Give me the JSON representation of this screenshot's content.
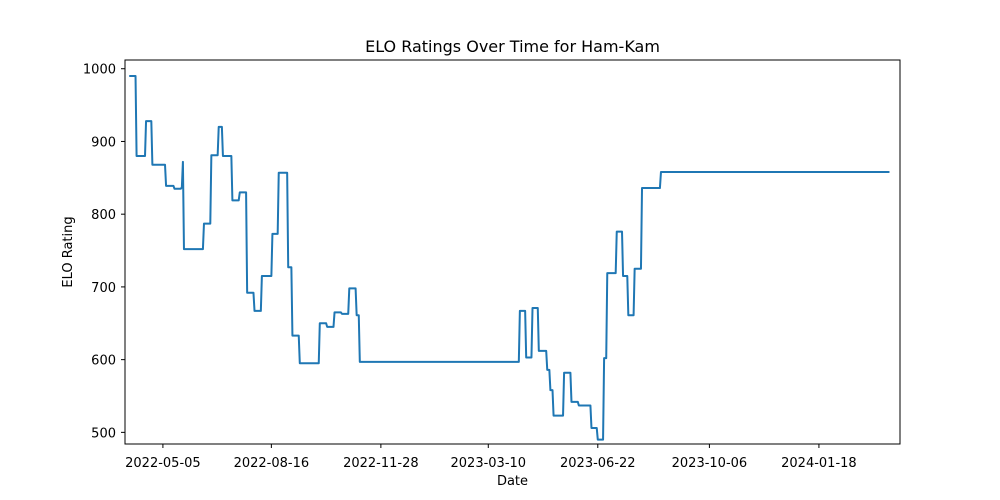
{
  "chart_data": {
    "type": "line",
    "title": "ELO Ratings Over Time for Ham-Kam",
    "xlabel": "Date",
    "ylabel": "ELO Rating",
    "x_ticks": [
      "2022-05-05",
      "2022-08-16",
      "2022-11-28",
      "2023-03-10",
      "2023-06-22",
      "2023-10-06",
      "2024-01-18"
    ],
    "y_ticks": [
      500,
      600,
      700,
      800,
      900,
      1000
    ],
    "xlim": [
      "2022-03-30",
      "2024-04-04"
    ],
    "ylim": [
      484,
      1012
    ],
    "grid": false,
    "line_color": "#1f77b4",
    "series": [
      {
        "x": [
          "2022-04-03",
          "2022-04-09",
          "2022-04-10",
          "2022-04-18",
          "2022-04-19",
          "2022-04-24",
          "2022-04-25",
          "2022-05-07",
          "2022-05-08",
          "2022-05-15",
          "2022-05-16",
          "2022-05-22",
          "2022-05-23",
          "2022-05-24",
          "2022-05-25",
          "2022-06-12",
          "2022-06-13",
          "2022-06-19",
          "2022-06-20",
          "2022-06-26",
          "2022-06-27",
          "2022-06-30",
          "2022-07-01",
          "2022-07-09",
          "2022-07-10",
          "2022-07-16",
          "2022-07-17",
          "2022-07-23",
          "2022-07-24",
          "2022-07-30",
          "2022-07-31",
          "2022-08-06",
          "2022-08-07",
          "2022-08-16",
          "2022-08-17",
          "2022-08-22",
          "2022-08-23",
          "2022-08-31",
          "2022-09-01",
          "2022-09-04",
          "2022-09-05",
          "2022-09-11",
          "2022-09-12",
          "2022-09-14",
          "2022-09-15",
          "2022-09-30",
          "2022-10-01",
          "2022-10-07",
          "2022-10-08",
          "2022-10-14",
          "2022-10-15",
          "2022-10-21",
          "2022-10-22",
          "2022-10-28",
          "2022-10-29",
          "2022-11-04",
          "2022-11-05",
          "2022-11-07",
          "2022-11-08",
          "2023-04-08",
          "2023-04-09",
          "2023-04-14",
          "2023-04-15",
          "2023-04-20",
          "2023-04-21",
          "2023-04-26",
          "2023-04-27",
          "2023-05-04",
          "2023-05-05",
          "2023-05-07",
          "2023-05-08",
          "2023-05-10",
          "2023-05-11",
          "2023-05-20",
          "2023-05-21",
          "2023-05-27",
          "2023-05-28",
          "2023-06-03",
          "2023-06-04",
          "2023-06-15",
          "2023-06-16",
          "2023-06-21",
          "2023-06-22",
          "2023-06-27",
          "2023-06-28",
          "2023-06-30",
          "2023-07-01",
          "2023-07-09",
          "2023-07-10",
          "2023-07-15",
          "2023-07-16",
          "2023-07-20",
          "2023-07-21",
          "2023-07-26",
          "2023-07-27",
          "2023-08-02",
          "2023-08-03",
          "2023-08-05",
          "2023-08-06",
          "2023-08-20",
          "2023-08-21",
          "2024-03-25"
        ],
        "y": [
          990,
          990,
          880,
          880,
          928,
          928,
          868,
          868,
          839,
          839,
          835,
          835,
          837,
          872,
          752,
          752,
          787,
          787,
          881,
          881,
          920,
          920,
          880,
          880,
          819,
          819,
          830,
          830,
          692,
          692,
          667,
          667,
          715,
          715,
          773,
          773,
          857,
          857,
          727,
          727,
          633,
          633,
          595,
          595,
          595,
          595,
          650,
          650,
          645,
          645,
          665,
          665,
          663,
          663,
          698,
          698,
          661,
          661,
          597,
          597,
          667,
          667,
          603,
          603,
          671,
          671,
          612,
          612,
          586,
          586,
          558,
          558,
          523,
          523,
          582,
          582,
          542,
          542,
          537,
          537,
          506,
          506,
          490,
          490,
          602,
          602,
          719,
          719,
          776,
          776,
          715,
          715,
          661,
          661,
          725,
          725,
          836,
          836,
          836,
          836,
          858,
          858
        ]
      }
    ]
  }
}
